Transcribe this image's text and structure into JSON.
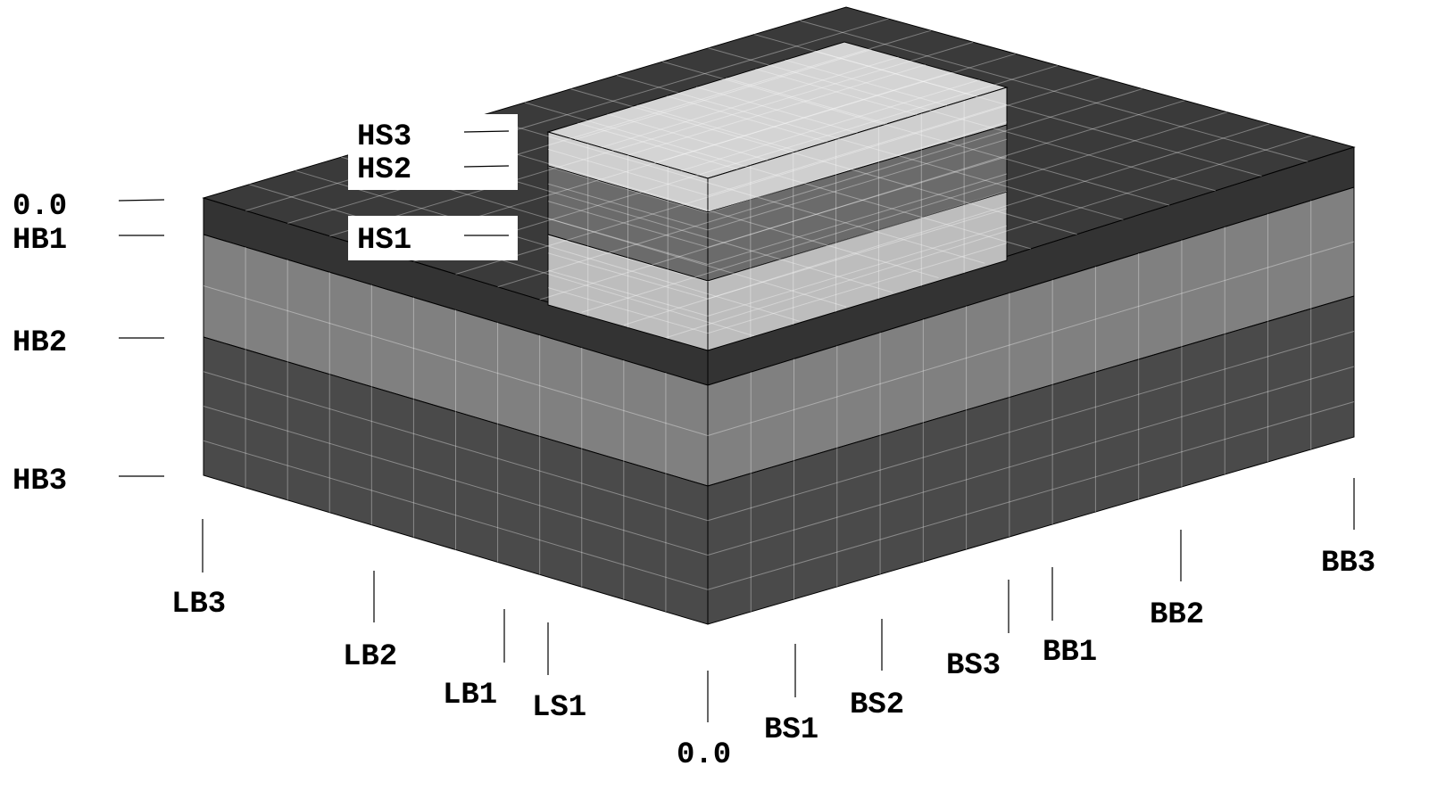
{
  "height_labels": [
    "0.0",
    "HB1",
    "HB2",
    "HB3"
  ],
  "structure_labels": [
    "HS3",
    "HS2",
    "HS1"
  ],
  "length_labels": [
    "LB3",
    "LB2",
    "LB1",
    "LS1"
  ],
  "breadth_labels": [
    "0.0",
    "BS1",
    "BS2",
    "BS3",
    "BB1",
    "BB2",
    "BB3"
  ]
}
